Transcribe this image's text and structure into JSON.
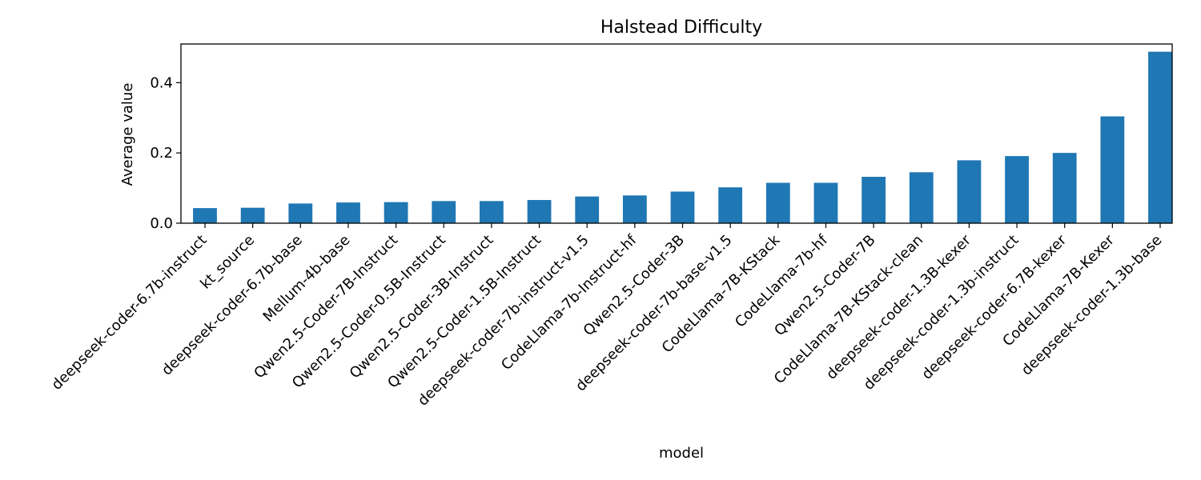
{
  "chart_data": {
    "type": "bar",
    "title": "Halstead Difficulty",
    "xlabel": "model",
    "ylabel": "Average value",
    "ylim": [
      0,
      0.51
    ],
    "yticks": [
      0.0,
      0.2,
      0.4
    ],
    "ytick_labels": [
      "0.0",
      "0.2",
      "0.4"
    ],
    "grid": false,
    "legend": "none",
    "bar_color": "#1f77b4",
    "categories": [
      "deepseek-coder-6.7b-instruct",
      "kt_source",
      "deepseek-coder-6.7b-base",
      "Mellum-4b-base",
      "Qwen2.5-Coder-7B-Instruct",
      "Qwen2.5-Coder-0.5B-Instruct",
      "Qwen2.5-Coder-3B-Instruct",
      "Qwen2.5-Coder-1.5B-Instruct",
      "deepseek-coder-7b-instruct-v1.5",
      "CodeLlama-7b-Instruct-hf",
      "Qwen2.5-Coder-3B",
      "deepseek-coder-7b-base-v1.5",
      "CodeLlama-7B-KStack",
      "CodeLlama-7b-hf",
      "Qwen2.5-Coder-7B",
      "CodeLlama-7B-KStack-clean",
      "deepseek-coder-1.3B-kexer",
      "deepseek-coder-1.3b-instruct",
      "deepseek-coder-6.7B-kexer",
      "CodeLlama-7B-Kexer",
      "deepseek-coder-1.3b-base"
    ],
    "values": [
      0.043,
      0.044,
      0.056,
      0.059,
      0.06,
      0.063,
      0.063,
      0.066,
      0.076,
      0.079,
      0.09,
      0.102,
      0.115,
      0.115,
      0.132,
      0.145,
      0.179,
      0.191,
      0.2,
      0.304,
      0.488
    ]
  }
}
